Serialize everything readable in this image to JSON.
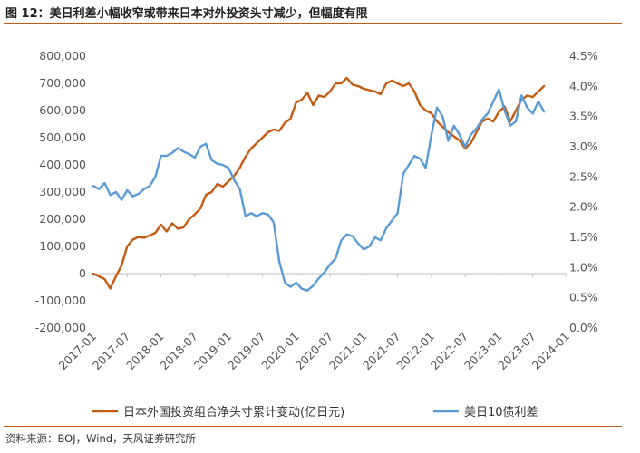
{
  "header": {
    "title": "图 12：美日利差小幅收窄或带来日本对外投资头寸减少，但幅度有限"
  },
  "footer": {
    "source": "资料来源：BOJ，Wind，天风证券研究所"
  },
  "chart_data": {
    "type": "line",
    "title": "图 12：美日利差小幅收窄或带来日本对外投资头寸减少，但幅度有限",
    "left_axis": {
      "ylim": [
        -200000,
        800000
      ],
      "ticks": [
        -200000,
        -100000,
        0,
        100000,
        200000,
        300000,
        400000,
        500000,
        600000,
        700000,
        800000
      ],
      "tick_labels": [
        "-200,000",
        "-100,000",
        "0",
        "100,000",
        "200,000",
        "300,000",
        "400,000",
        "500,000",
        "600,000",
        "700,000",
        "800,000"
      ]
    },
    "right_axis": {
      "ylim": [
        0.0,
        4.5
      ],
      "ticks": [
        0.0,
        0.5,
        1.0,
        1.5,
        2.0,
        2.5,
        3.0,
        3.5,
        4.0,
        4.5
      ],
      "tick_labels": [
        "0.0%",
        "0.5%",
        "1.0%",
        "1.5%",
        "2.0%",
        "2.5%",
        "3.0%",
        "3.5%",
        "4.0%",
        "4.5%"
      ]
    },
    "x_tick_labels": [
      "2017-01",
      "2017-07",
      "2018-01",
      "2018-07",
      "2019-01",
      "2019-07",
      "2020-01",
      "2020-07",
      "2021-01",
      "2021-07",
      "2022-01",
      "2022-07",
      "2023-01",
      "2023-07",
      "2024-01"
    ],
    "x_range_months": [
      0,
      84
    ],
    "legend": {
      "position": "bottom"
    },
    "series": [
      {
        "name": "日本外国投资组合净头寸累计变动(亿日元)",
        "axis": "left",
        "color": "#c55a11",
        "points": [
          [
            0,
            0
          ],
          [
            1,
            -10000
          ],
          [
            2,
            -20000
          ],
          [
            3,
            -55000
          ],
          [
            4,
            -10000
          ],
          [
            5,
            30000
          ],
          [
            6,
            100000
          ],
          [
            7,
            125000
          ],
          [
            8,
            135000
          ],
          [
            9,
            132000
          ],
          [
            10,
            140000
          ],
          [
            11,
            150000
          ],
          [
            12,
            180000
          ],
          [
            13,
            155000
          ],
          [
            14,
            185000
          ],
          [
            15,
            165000
          ],
          [
            16,
            170000
          ],
          [
            17,
            200000
          ],
          [
            18,
            218000
          ],
          [
            19,
            240000
          ],
          [
            20,
            290000
          ],
          [
            21,
            300000
          ],
          [
            22,
            330000
          ],
          [
            23,
            320000
          ],
          [
            24,
            340000
          ],
          [
            25,
            360000
          ],
          [
            26,
            390000
          ],
          [
            27,
            430000
          ],
          [
            28,
            460000
          ],
          [
            29,
            480000
          ],
          [
            30,
            500000
          ],
          [
            31,
            520000
          ],
          [
            32,
            530000
          ],
          [
            33,
            525000
          ],
          [
            34,
            555000
          ],
          [
            35,
            570000
          ],
          [
            36,
            630000
          ],
          [
            37,
            640000
          ],
          [
            38,
            665000
          ],
          [
            39,
            620000
          ],
          [
            40,
            655000
          ],
          [
            41,
            650000
          ],
          [
            42,
            670000
          ],
          [
            43,
            700000
          ],
          [
            44,
            700000
          ],
          [
            45,
            720000
          ],
          [
            46,
            695000
          ],
          [
            47,
            690000
          ],
          [
            48,
            680000
          ],
          [
            49,
            675000
          ],
          [
            50,
            670000
          ],
          [
            51,
            660000
          ],
          [
            52,
            700000
          ],
          [
            53,
            710000
          ],
          [
            54,
            700000
          ],
          [
            55,
            690000
          ],
          [
            56,
            700000
          ],
          [
            57,
            670000
          ],
          [
            58,
            620000
          ],
          [
            59,
            600000
          ],
          [
            60,
            590000
          ],
          [
            61,
            560000
          ],
          [
            62,
            540000
          ],
          [
            63,
            520000
          ],
          [
            64,
            505000
          ],
          [
            65,
            490000
          ],
          [
            66,
            460000
          ],
          [
            67,
            480000
          ],
          [
            68,
            520000
          ],
          [
            69,
            560000
          ],
          [
            70,
            570000
          ],
          [
            71,
            560000
          ],
          [
            72,
            595000
          ],
          [
            73,
            615000
          ],
          [
            74,
            560000
          ],
          [
            75,
            600000
          ],
          [
            76,
            640000
          ],
          [
            77,
            655000
          ],
          [
            78,
            650000
          ],
          [
            79,
            670000
          ],
          [
            80,
            690000
          ]
        ]
      },
      {
        "name": "美日10债利差",
        "axis": "right",
        "color": "#5b9bd5",
        "points": [
          [
            0,
            2.35
          ],
          [
            1,
            2.3
          ],
          [
            2,
            2.4
          ],
          [
            3,
            2.2
          ],
          [
            4,
            2.25
          ],
          [
            5,
            2.12
          ],
          [
            6,
            2.28
          ],
          [
            7,
            2.18
          ],
          [
            8,
            2.22
          ],
          [
            9,
            2.3
          ],
          [
            10,
            2.35
          ],
          [
            11,
            2.5
          ],
          [
            12,
            2.85
          ],
          [
            13,
            2.85
          ],
          [
            14,
            2.9
          ],
          [
            15,
            2.98
          ],
          [
            16,
            2.92
          ],
          [
            17,
            2.88
          ],
          [
            18,
            2.82
          ],
          [
            19,
            3.0
          ],
          [
            20,
            3.05
          ],
          [
            21,
            2.78
          ],
          [
            22,
            2.72
          ],
          [
            23,
            2.7
          ],
          [
            24,
            2.65
          ],
          [
            25,
            2.45
          ],
          [
            26,
            2.3
          ],
          [
            27,
            1.85
          ],
          [
            28,
            1.9
          ],
          [
            29,
            1.85
          ],
          [
            30,
            1.9
          ],
          [
            31,
            1.88
          ],
          [
            32,
            1.75
          ],
          [
            33,
            1.1
          ],
          [
            34,
            0.75
          ],
          [
            35,
            0.68
          ],
          [
            36,
            0.75
          ],
          [
            37,
            0.65
          ],
          [
            38,
            0.62
          ],
          [
            39,
            0.7
          ],
          [
            40,
            0.82
          ],
          [
            41,
            0.92
          ],
          [
            42,
            1.05
          ],
          [
            43,
            1.15
          ],
          [
            44,
            1.45
          ],
          [
            45,
            1.55
          ],
          [
            46,
            1.52
          ],
          [
            47,
            1.4
          ],
          [
            48,
            1.3
          ],
          [
            49,
            1.35
          ],
          [
            50,
            1.5
          ],
          [
            51,
            1.45
          ],
          [
            52,
            1.65
          ],
          [
            53,
            1.78
          ],
          [
            54,
            1.9
          ],
          [
            55,
            2.55
          ],
          [
            56,
            2.7
          ],
          [
            57,
            2.85
          ],
          [
            58,
            2.8
          ],
          [
            59,
            2.65
          ],
          [
            60,
            3.2
          ],
          [
            61,
            3.65
          ],
          [
            62,
            3.5
          ],
          [
            63,
            3.1
          ],
          [
            64,
            3.35
          ],
          [
            65,
            3.2
          ],
          [
            66,
            3.0
          ],
          [
            67,
            3.2
          ],
          [
            68,
            3.3
          ],
          [
            69,
            3.45
          ],
          [
            70,
            3.55
          ],
          [
            71,
            3.75
          ],
          [
            72,
            3.95
          ],
          [
            73,
            3.6
          ],
          [
            74,
            3.35
          ],
          [
            75,
            3.42
          ],
          [
            76,
            3.85
          ],
          [
            77,
            3.65
          ],
          [
            78,
            3.55
          ],
          [
            79,
            3.75
          ],
          [
            80,
            3.58
          ]
        ]
      }
    ]
  }
}
